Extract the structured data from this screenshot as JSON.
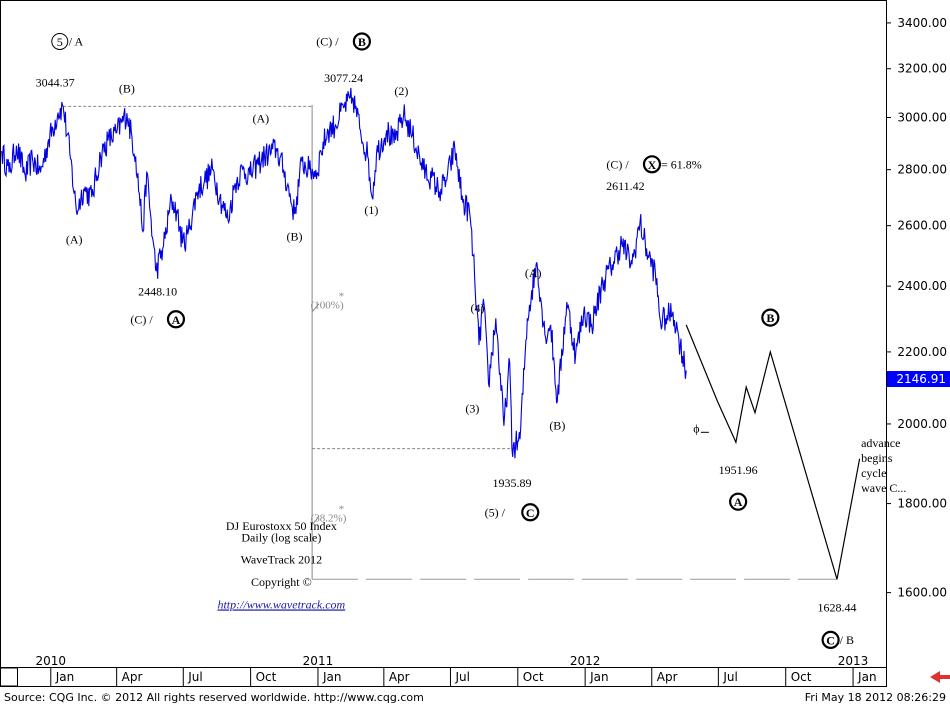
{
  "chart_data": {
    "type": "line",
    "title": "DJ Eurostoxx 50 Index",
    "subtitle": "Daily (log scale)",
    "credit": "WaveTrack 2012",
    "copyright": "Copyright ©",
    "url": "http://www.wavetrack.com",
    "y_scale": "log",
    "ylim": [
      1450,
      3500
    ],
    "xlim": [
      "2009-10-25",
      "2013-02-15"
    ],
    "y_ticks": [
      "3400.00",
      "3200.00",
      "3000.00",
      "2800.00",
      "2600.00",
      "2400.00",
      "2200.00",
      "2000.00",
      "1800.00",
      "1600.00"
    ],
    "last_price_label": "2146.91",
    "x_ticks": [
      {
        "date": "2010-01-01",
        "label": "Jan",
        "year": "2010"
      },
      {
        "date": "2010-04-01",
        "label": "Apr"
      },
      {
        "date": "2010-07-01",
        "label": "Jul"
      },
      {
        "date": "2010-10-01",
        "label": "Oct"
      },
      {
        "date": "2011-01-01",
        "label": "Jan",
        "year": "2011"
      },
      {
        "date": "2011-04-01",
        "label": "Apr"
      },
      {
        "date": "2011-07-01",
        "label": "Jul"
      },
      {
        "date": "2011-10-01",
        "label": "Oct"
      },
      {
        "date": "2012-01-01",
        "label": "Jan",
        "year": "2012"
      },
      {
        "date": "2012-04-01",
        "label": "Apr"
      },
      {
        "date": "2012-07-01",
        "label": "Jul"
      },
      {
        "date": "2012-10-01",
        "label": "Oct"
      },
      {
        "date": "2013-01-01",
        "label": "Jan",
        "year": "2013"
      }
    ],
    "series": [
      {
        "name": "",
        "color": "#0000e0",
        "points": [
          [
            "2009-10-26",
            2870
          ],
          [
            "2009-11-05",
            2790
          ],
          [
            "2009-11-15",
            2890
          ],
          [
            "2009-11-27",
            2780
          ],
          [
            "2009-12-07",
            2840
          ],
          [
            "2009-12-18",
            2790
          ],
          [
            "2009-12-28",
            2900
          ],
          [
            "2010-01-11",
            3020
          ],
          [
            "2010-01-18",
            3044.37
          ],
          [
            "2010-01-28",
            2840
          ],
          [
            "2010-02-05",
            2650
          ],
          [
            "2010-02-15",
            2730
          ],
          [
            "2010-02-26",
            2700
          ],
          [
            "2010-03-10",
            2850
          ],
          [
            "2010-03-20",
            2910
          ],
          [
            "2010-04-01",
            2940
          ],
          [
            "2010-04-15",
            3017
          ],
          [
            "2010-04-27",
            2850
          ],
          [
            "2010-05-07",
            2580
          ],
          [
            "2010-05-12",
            2790
          ],
          [
            "2010-05-20",
            2560
          ],
          [
            "2010-05-25",
            2448.1
          ],
          [
            "2010-06-04",
            2530
          ],
          [
            "2010-06-15",
            2690
          ],
          [
            "2010-06-22",
            2650
          ],
          [
            "2010-06-30",
            2540
          ],
          [
            "2010-07-07",
            2570
          ],
          [
            "2010-07-20",
            2720
          ],
          [
            "2010-07-30",
            2760
          ],
          [
            "2010-08-10",
            2800
          ],
          [
            "2010-08-20",
            2700
          ],
          [
            "2010-08-31",
            2620
          ],
          [
            "2010-09-10",
            2750
          ],
          [
            "2010-09-20",
            2800
          ],
          [
            "2010-09-30",
            2780
          ],
          [
            "2010-10-10",
            2820
          ],
          [
            "2010-10-20",
            2850
          ],
          [
            "2010-11-05",
            2880
          ],
          [
            "2010-11-15",
            2800
          ],
          [
            "2010-11-30",
            2640
          ],
          [
            "2010-12-10",
            2830
          ],
          [
            "2010-12-20",
            2800
          ],
          [
            "2010-12-31",
            2790
          ],
          [
            "2011-01-05",
            2870
          ],
          [
            "2011-01-15",
            2950
          ],
          [
            "2011-01-25",
            2970
          ],
          [
            "2011-02-05",
            3040
          ],
          [
            "2011-02-18",
            3077.24
          ],
          [
            "2011-02-28",
            2950
          ],
          [
            "2011-03-10",
            2850
          ],
          [
            "2011-03-16",
            2700
          ],
          [
            "2011-03-22",
            2860
          ],
          [
            "2011-04-05",
            2950
          ],
          [
            "2011-04-15",
            2900
          ],
          [
            "2011-04-28",
            3011
          ],
          [
            "2011-05-10",
            2930
          ],
          [
            "2011-05-25",
            2800
          ],
          [
            "2011-06-05",
            2770
          ],
          [
            "2011-06-16",
            2720
          ],
          [
            "2011-06-25",
            2760
          ],
          [
            "2011-07-07",
            2880
          ],
          [
            "2011-07-18",
            2680
          ],
          [
            "2011-07-27",
            2650
          ],
          [
            "2011-08-03",
            2430
          ],
          [
            "2011-08-09",
            2220
          ],
          [
            "2011-08-15",
            2360
          ],
          [
            "2011-08-22",
            2110
          ],
          [
            "2011-09-01",
            2300
          ],
          [
            "2011-09-12",
            1995
          ],
          [
            "2011-09-20",
            2170
          ],
          [
            "2011-09-23",
            1935.89
          ],
          [
            "2011-10-04",
            1960
          ],
          [
            "2011-10-14",
            2300
          ],
          [
            "2011-10-27",
            2477
          ],
          [
            "2011-11-07",
            2250
          ],
          [
            "2011-11-15",
            2280
          ],
          [
            "2011-11-24",
            2060
          ],
          [
            "2011-12-07",
            2350
          ],
          [
            "2011-12-19",
            2190
          ],
          [
            "2011-12-30",
            2320
          ],
          [
            "2012-01-10",
            2280
          ],
          [
            "2012-01-25",
            2410
          ],
          [
            "2012-02-07",
            2470
          ],
          [
            "2012-02-20",
            2540
          ],
          [
            "2012-03-05",
            2470
          ],
          [
            "2012-03-16",
            2611.42
          ],
          [
            "2012-03-27",
            2500
          ],
          [
            "2012-04-06",
            2440
          ],
          [
            "2012-04-13",
            2290
          ],
          [
            "2012-04-20",
            2300
          ],
          [
            "2012-04-30",
            2320
          ],
          [
            "2012-05-08",
            2240
          ],
          [
            "2012-05-18",
            2146.91
          ]
        ]
      },
      {
        "name": "projection",
        "color": "#000000",
        "points": [
          [
            "2012-05-18",
            2280
          ],
          [
            "2012-06-30",
            2060
          ],
          [
            "2012-07-25",
            1951.96
          ],
          [
            "2012-08-08",
            2100
          ],
          [
            "2012-08-20",
            2030
          ],
          [
            "2012-09-10",
            2200
          ],
          [
            "2012-12-10",
            1628.44
          ],
          [
            "2013-01-10",
            1910
          ]
        ]
      }
    ],
    "annotations": [
      {
        "id": "wave5-a",
        "parts": [
          {
            "circle": "5",
            "style": "outline"
          },
          {
            "text": " / A"
          }
        ],
        "date": "2010-01-01",
        "y": 3300,
        "anchor": "start"
      },
      {
        "id": "high-2010",
        "text": "3044.37",
        "date": "2010-01-07",
        "y": 3125,
        "anchor": "middle"
      },
      {
        "id": "lbl-A1",
        "text": "(A)",
        "date": "2010-02-02",
        "y": 2540,
        "anchor": "middle"
      },
      {
        "id": "lbl-B1",
        "text": "(B)",
        "date": "2010-04-15",
        "y": 3100,
        "anchor": "middle"
      },
      {
        "id": "low-2010",
        "text": "2448.10",
        "date": "2010-05-27",
        "y": 2370,
        "anchor": "middle"
      },
      {
        "id": "wave-c-A",
        "parts": [
          {
            "text": "(C) / "
          },
          {
            "circle": "A",
            "style": "bold"
          }
        ],
        "date": "2010-05-27",
        "y": 2285,
        "anchor": "middle"
      },
      {
        "id": "lbl-A2",
        "text": "(A)",
        "date": "2010-10-15",
        "y": 2980,
        "anchor": "middle"
      },
      {
        "id": "lbl-B2",
        "text": "(B)",
        "date": "2010-11-30",
        "y": 2550,
        "anchor": "middle"
      },
      {
        "id": "wave-c-B",
        "parts": [
          {
            "text": "(C) / "
          },
          {
            "circle": "B",
            "style": "bold"
          }
        ],
        "date": "2011-02-05",
        "y": 3300,
        "anchor": "middle"
      },
      {
        "id": "high-2011",
        "text": "3077.24",
        "date": "2011-02-05",
        "y": 3145,
        "anchor": "middle"
      },
      {
        "id": "lbl-2",
        "text": "(2)",
        "date": "2011-04-25",
        "y": 3090,
        "anchor": "middle"
      },
      {
        "id": "lbl-1",
        "text": "(1)",
        "date": "2011-03-15",
        "y": 2640,
        "anchor": "middle"
      },
      {
        "id": "lbl-100",
        "text": "(100%)",
        "date": "2010-12-22",
        "y": 2330,
        "anchor": "start",
        "style": "grey"
      },
      {
        "id": "lbl-382",
        "text": "(38.2%)",
        "date": "2010-12-22",
        "y": 1758,
        "anchor": "start",
        "style": "grey"
      },
      {
        "id": "lbl-4",
        "text": "(4)",
        "date": "2011-08-07",
        "y": 2320,
        "anchor": "middle"
      },
      {
        "id": "lbl-3",
        "text": "(3)",
        "date": "2011-07-31",
        "y": 2030,
        "anchor": "middle"
      },
      {
        "id": "low-2011",
        "text": "1935.89",
        "date": "2011-09-23",
        "y": 1840,
        "anchor": "middle"
      },
      {
        "id": "wave5-C",
        "parts": [
          {
            "text": "(5) / "
          },
          {
            "circle": "C",
            "style": "bold"
          }
        ],
        "date": "2011-09-23",
        "y": 1770,
        "anchor": "middle"
      },
      {
        "id": "lbl-A3",
        "text": "(A)",
        "date": "2011-10-22",
        "y": 2430,
        "anchor": "middle"
      },
      {
        "id": "lbl-B3",
        "text": "(B)",
        "date": "2011-11-24",
        "y": 1985,
        "anchor": "middle"
      },
      {
        "id": "wave-c-X",
        "parts": [
          {
            "text": "(C) / "
          },
          {
            "circle": "X",
            "style": "bold"
          },
          {
            "text": " = 61.8%"
          }
        ],
        "date": "2012-01-30",
        "y": 2805,
        "anchor": "start"
      },
      {
        "id": "high-2012",
        "text": "2611.42",
        "date": "2012-02-25",
        "y": 2725,
        "anchor": "middle"
      },
      {
        "id": "phi",
        "text": "ϕ",
        "date": "2012-06-01",
        "y": 1978,
        "anchor": "middle",
        "style": "red"
      },
      {
        "id": "proj-low-A",
        "text": "1951.96",
        "date": "2012-07-28",
        "y": 1872,
        "anchor": "middle"
      },
      {
        "id": "proj-A",
        "parts": [
          {
            "circle": "A",
            "style": "bold"
          }
        ],
        "date": "2012-07-28",
        "y": 1795,
        "anchor": "middle"
      },
      {
        "id": "proj-B",
        "parts": [
          {
            "circle": "B",
            "style": "bold"
          }
        ],
        "date": "2012-09-10",
        "y": 2290,
        "anchor": "middle"
      },
      {
        "id": "proj-low",
        "text": "1628.44",
        "date": "2012-12-10",
        "y": 1560,
        "anchor": "middle"
      },
      {
        "id": "proj-C",
        "parts": [
          {
            "circle": "C",
            "style": "bold"
          },
          {
            "text": " / B"
          }
        ],
        "date": "2012-12-18",
        "y": 1495,
        "anchor": "middle"
      },
      {
        "id": "advance",
        "lines": [
          "advance",
          "begins",
          "cycle",
          "wave C..."
        ],
        "date": "2013-01-12",
        "y": 1940,
        "anchor": "start"
      }
    ],
    "info_block": {
      "date": "2010-11-12",
      "y": 1738,
      "lines": [
        "DJ Eurostoxx 50 Index",
        "Daily (log scale)",
        "",
        "WaveTrack 2012",
        "",
        "Copyright  ©",
        "",
        "http://www.wavetrack.com"
      ]
    },
    "ref_lines": [
      {
        "y": 3044.37,
        "from": "2010-01-18",
        "to": "2010-12-24"
      },
      {
        "y": 1935.89,
        "from": "2010-12-24",
        "to": "2011-09-30"
      },
      {
        "y": 1628.44,
        "from": "2010-12-24",
        "to": "2012-12-10",
        "segmented": true
      }
    ],
    "vertical_ref": {
      "date": "2010-12-24",
      "y_top": 3050,
      "y_bottom": 1628.44
    },
    "footer_left": "Source: CQG Inc. © 2012 All rights reserved worldwide. http://www.cqg.com",
    "footer_right": "Fri May 18 2012 08:26:29"
  }
}
